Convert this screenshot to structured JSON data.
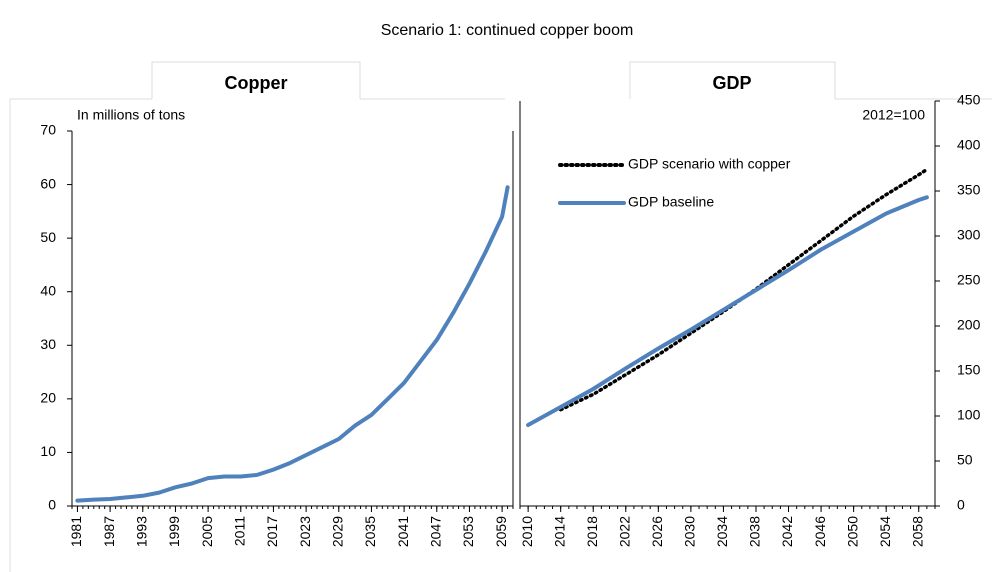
{
  "title": "Scenario 1: continued copper boom",
  "chart_data": [
    {
      "type": "line",
      "title": "Copper",
      "ylabel": "In millions  of tons",
      "xlim": [
        1980,
        2061
      ],
      "xticks": [
        1981,
        1987,
        1993,
        1999,
        2005,
        2011,
        2017,
        2023,
        2029,
        2035,
        2041,
        2047,
        2053,
        2059
      ],
      "ylim": [
        0,
        70
      ],
      "yticks": [
        0,
        10,
        20,
        30,
        40,
        50,
        60,
        70
      ],
      "y_axis_side": "left",
      "series": [
        {
          "name": null,
          "color": "#4f81bd",
          "style": "solid",
          "x": [
            1981,
            1984,
            1987,
            1990,
            1993,
            1996,
            1999,
            2002,
            2005,
            2008,
            2011,
            2014,
            2017,
            2020,
            2023,
            2026,
            2029,
            2032,
            2035,
            2038,
            2041,
            2044,
            2047,
            2050,
            2053,
            2056,
            2059,
            2060
          ],
          "values": [
            1.0,
            1.2,
            1.3,
            1.6,
            1.9,
            2.5,
            3.5,
            4.2,
            5.2,
            5.5,
            5.5,
            5.8,
            6.8,
            8.0,
            9.5,
            11.0,
            12.5,
            15.0,
            17.0,
            20.0,
            23.0,
            27.0,
            31.0,
            36.0,
            41.5,
            47.5,
            54.0,
            59.5
          ]
        }
      ]
    },
    {
      "type": "line",
      "title": "GDP",
      "ylabel": "2012=100",
      "xlim": [
        2009,
        2060
      ],
      "xticks": [
        2010,
        2014,
        2018,
        2022,
        2026,
        2030,
        2034,
        2038,
        2042,
        2046,
        2050,
        2054,
        2058
      ],
      "ylim": [
        0,
        450
      ],
      "yticks": [
        0,
        50,
        100,
        150,
        200,
        250,
        300,
        350,
        400,
        450
      ],
      "y_axis_side": "right",
      "legend": "upper left",
      "series": [
        {
          "name": "GDP scenario with copper",
          "color": "#000000",
          "style": "dotted",
          "x": [
            2014,
            2018,
            2022,
            2026,
            2030,
            2034,
            2038,
            2042,
            2046,
            2050,
            2054,
            2058,
            2059
          ],
          "values": [
            107,
            124,
            146,
            168,
            192,
            216,
            241,
            268,
            295,
            322,
            346,
            368,
            374
          ]
        },
        {
          "name": "GDP baseline",
          "color": "#4f81bd",
          "style": "solid",
          "x": [
            2010,
            2014,
            2018,
            2022,
            2026,
            2030,
            2034,
            2038,
            2042,
            2046,
            2050,
            2054,
            2058,
            2059
          ],
          "values": [
            90,
            110,
            130,
            153,
            175,
            196,
            218,
            240,
            262,
            285,
            305,
            325,
            340,
            343
          ]
        }
      ]
    }
  ]
}
